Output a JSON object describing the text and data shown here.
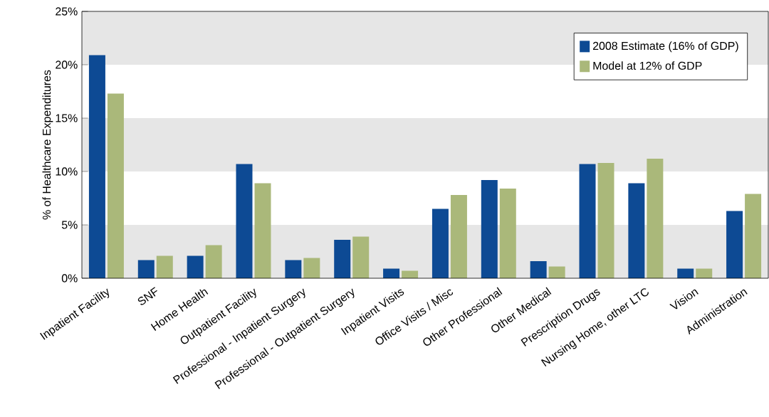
{
  "chart_data": {
    "type": "bar",
    "ylabel": "% of Healthcare Expenditures",
    "categories": [
      "Inpatient Facility",
      "SNF",
      "Home Health",
      "Outpatient Facility",
      "Professional - Inpatient Surgery",
      "Professional - Outpatient Surgery",
      "Inpatient Visits",
      "Office Visits / Misc",
      "Other Professional",
      "Other Medical",
      "Prescription Drugs",
      "Nursing Home, other LTC",
      "Vision",
      "Administration"
    ],
    "series": [
      {
        "name": "2008 Estimate (16% of GDP)",
        "color": "#0d4a94",
        "values": [
          20.9,
          1.7,
          2.1,
          10.7,
          1.7,
          3.6,
          0.9,
          6.5,
          9.2,
          1.6,
          10.7,
          8.9,
          0.9,
          6.3
        ]
      },
      {
        "name": "Model at 12% of GDP",
        "color": "#aab87a",
        "values": [
          17.3,
          2.1,
          3.1,
          8.9,
          1.9,
          3.9,
          0.7,
          7.8,
          8.4,
          1.1,
          10.8,
          11.2,
          0.9,
          7.9
        ]
      }
    ],
    "ylim": [
      0,
      25
    ],
    "yticks": [
      {
        "value": 0,
        "label": "0%"
      },
      {
        "value": 5,
        "label": "5%"
      },
      {
        "value": 10,
        "label": "10%"
      },
      {
        "value": 15,
        "label": "15%"
      },
      {
        "value": 20,
        "label": "20%"
      },
      {
        "value": 25,
        "label": "25%"
      }
    ],
    "bands": [
      {
        "axis": "y",
        "from": 0,
        "to": 5,
        "color": "#e6e6e6"
      },
      {
        "axis": "y",
        "from": 10,
        "to": 15,
        "color": "#e6e6e6"
      },
      {
        "axis": "y",
        "from": 20,
        "to": 25,
        "color": "#e6e6e6"
      }
    ],
    "legend": "top right"
  }
}
